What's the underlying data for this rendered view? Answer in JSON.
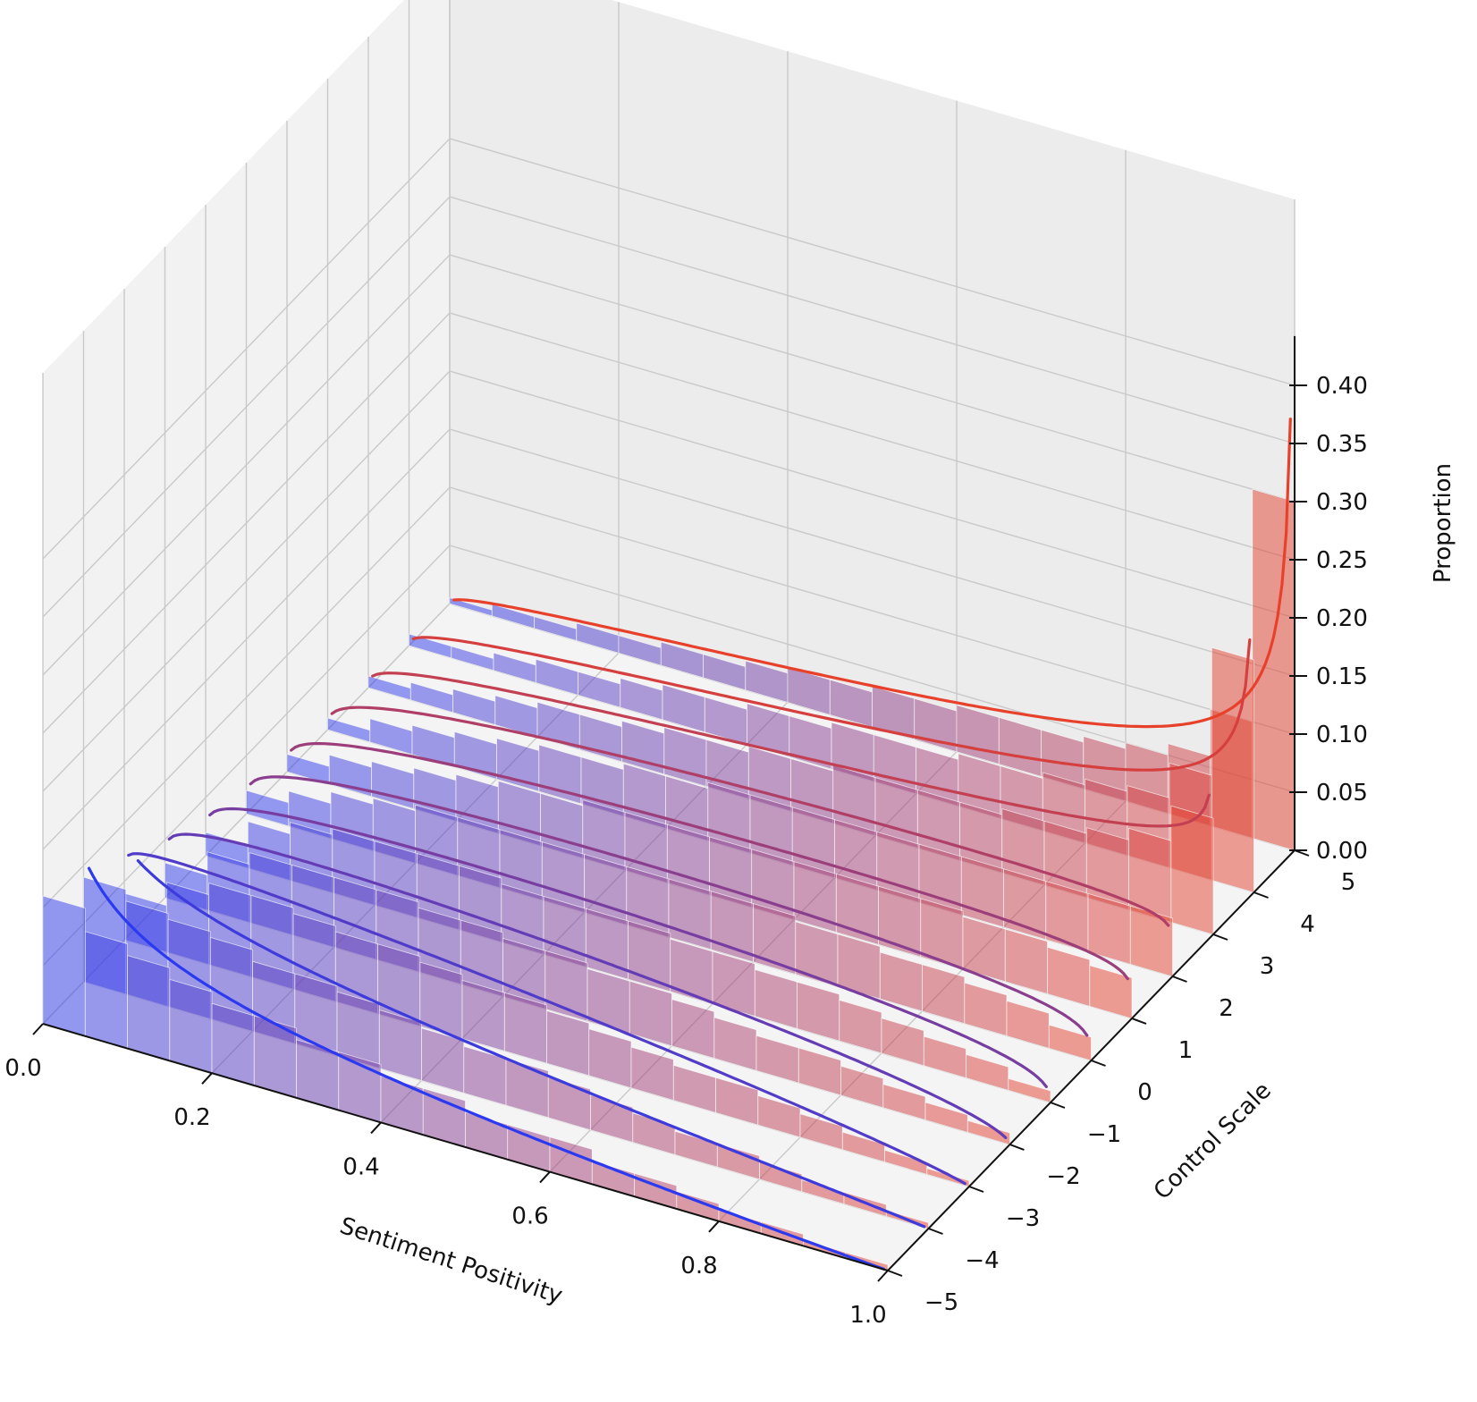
{
  "chart_data": {
    "type": "bar",
    "subtype": "3d-histogram-with-fitted-curves",
    "title": "",
    "xlabel": "Sentiment Positivity",
    "ylabel": "Control Scale",
    "zlabel": "Proportion",
    "xlim": [
      0,
      1
    ],
    "ylim": [
      -5,
      5
    ],
    "zlim": [
      0,
      0.44
    ],
    "x_ticks": [
      "0.0",
      "0.2",
      "0.4",
      "0.6",
      "0.8",
      "1.0"
    ],
    "y_ticks": [
      "−5",
      "−4",
      "−3",
      "−2",
      "−1",
      "0",
      "1",
      "2",
      "3",
      "4",
      "5"
    ],
    "z_ticks": [
      "0.00",
      "0.05",
      "0.10",
      "0.15",
      "0.20",
      "0.25",
      "0.30",
      "0.35",
      "0.40"
    ],
    "grid": true,
    "color_low": "#2b3af0",
    "color_high": "#e8412b",
    "bins": [
      0.025,
      0.075,
      0.125,
      0.175,
      0.225,
      0.275,
      0.325,
      0.375,
      0.425,
      0.475,
      0.525,
      0.575,
      0.625,
      0.675,
      0.725,
      0.775,
      0.825,
      0.875,
      0.925,
      0.975
    ],
    "series": [
      {
        "control": -5,
        "values": [
          0.11,
          0.09,
          0.08,
          0.07,
          0.06,
          0.06,
          0.05,
          0.05,
          0.04,
          0.04,
          0.03,
          0.03,
          0.03,
          0.02,
          0.02,
          0.015,
          0.01,
          0.01,
          0.005,
          0.005
        ]
      },
      {
        "control": -4,
        "values": [
          0.09,
          0.08,
          0.075,
          0.07,
          0.06,
          0.06,
          0.055,
          0.05,
          0.045,
          0.04,
          0.04,
          0.035,
          0.03,
          0.025,
          0.02,
          0.02,
          0.015,
          0.01,
          0.01,
          0.005
        ]
      },
      {
        "control": -3,
        "values": [
          0.04,
          0.06,
          0.07,
          0.07,
          0.065,
          0.06,
          0.06,
          0.055,
          0.05,
          0.05,
          0.045,
          0.04,
          0.035,
          0.03,
          0.03,
          0.025,
          0.02,
          0.015,
          0.01,
          0.005
        ]
      },
      {
        "control": -2,
        "values": [
          0.03,
          0.05,
          0.06,
          0.06,
          0.06,
          0.06,
          0.055,
          0.055,
          0.05,
          0.05,
          0.045,
          0.045,
          0.04,
          0.035,
          0.03,
          0.03,
          0.025,
          0.02,
          0.015,
          0.01
        ]
      },
      {
        "control": -1,
        "values": [
          0.02,
          0.04,
          0.05,
          0.055,
          0.055,
          0.055,
          0.055,
          0.05,
          0.05,
          0.05,
          0.05,
          0.045,
          0.045,
          0.04,
          0.04,
          0.035,
          0.03,
          0.025,
          0.02,
          0.01
        ]
      },
      {
        "control": 0,
        "values": [
          0.02,
          0.03,
          0.04,
          0.045,
          0.05,
          0.05,
          0.05,
          0.05,
          0.05,
          0.05,
          0.05,
          0.05,
          0.05,
          0.045,
          0.045,
          0.04,
          0.04,
          0.035,
          0.03,
          0.02
        ]
      },
      {
        "control": 1,
        "values": [
          0.015,
          0.025,
          0.03,
          0.035,
          0.04,
          0.045,
          0.045,
          0.05,
          0.05,
          0.05,
          0.05,
          0.05,
          0.05,
          0.05,
          0.05,
          0.05,
          0.045,
          0.045,
          0.04,
          0.035
        ]
      },
      {
        "control": 2,
        "values": [
          0.01,
          0.02,
          0.025,
          0.03,
          0.035,
          0.04,
          0.04,
          0.045,
          0.045,
          0.05,
          0.05,
          0.05,
          0.05,
          0.05,
          0.05,
          0.05,
          0.05,
          0.05,
          0.05,
          0.05
        ]
      },
      {
        "control": 3,
        "values": [
          0.01,
          0.015,
          0.02,
          0.025,
          0.03,
          0.03,
          0.035,
          0.04,
          0.04,
          0.045,
          0.045,
          0.05,
          0.05,
          0.05,
          0.05,
          0.055,
          0.055,
          0.06,
          0.07,
          0.1
        ]
      },
      {
        "control": 4,
        "values": [
          0.01,
          0.01,
          0.015,
          0.02,
          0.02,
          0.025,
          0.03,
          0.03,
          0.035,
          0.035,
          0.04,
          0.04,
          0.04,
          0.045,
          0.045,
          0.05,
          0.055,
          0.06,
          0.09,
          0.2
        ]
      },
      {
        "control": 5,
        "values": [
          0.005,
          0.01,
          0.01,
          0.015,
          0.015,
          0.02,
          0.02,
          0.025,
          0.03,
          0.03,
          0.035,
          0.035,
          0.04,
          0.04,
          0.04,
          0.045,
          0.05,
          0.06,
          0.1,
          0.3
        ]
      }
    ],
    "curves": [
      {
        "control": -5,
        "a": 0.6,
        "b": 2.0,
        "cap": 0.15
      },
      {
        "control": -4,
        "a": 0.75,
        "b": 1.9,
        "cap": 0.12
      },
      {
        "control": -3,
        "a": 1.05,
        "b": 1.8,
        "cap": 0.1
      },
      {
        "control": -2,
        "a": 1.1,
        "b": 1.55,
        "cap": 0.1
      },
      {
        "control": -1,
        "a": 1.15,
        "b": 1.35,
        "cap": 0.1
      },
      {
        "control": 0,
        "a": 1.2,
        "b": 1.25,
        "cap": 0.1
      },
      {
        "control": 1,
        "a": 1.25,
        "b": 1.15,
        "cap": 0.1
      },
      {
        "control": 2,
        "a": 1.3,
        "b": 1.1,
        "cap": 0.1
      },
      {
        "control": 3,
        "a": 1.3,
        "b": 0.85,
        "cap": 0.22
      },
      {
        "control": 4,
        "a": 1.35,
        "b": 0.7,
        "cap": 0.33
      },
      {
        "control": 5,
        "a": 1.4,
        "b": 0.55,
        "cap": 0.43
      }
    ]
  }
}
